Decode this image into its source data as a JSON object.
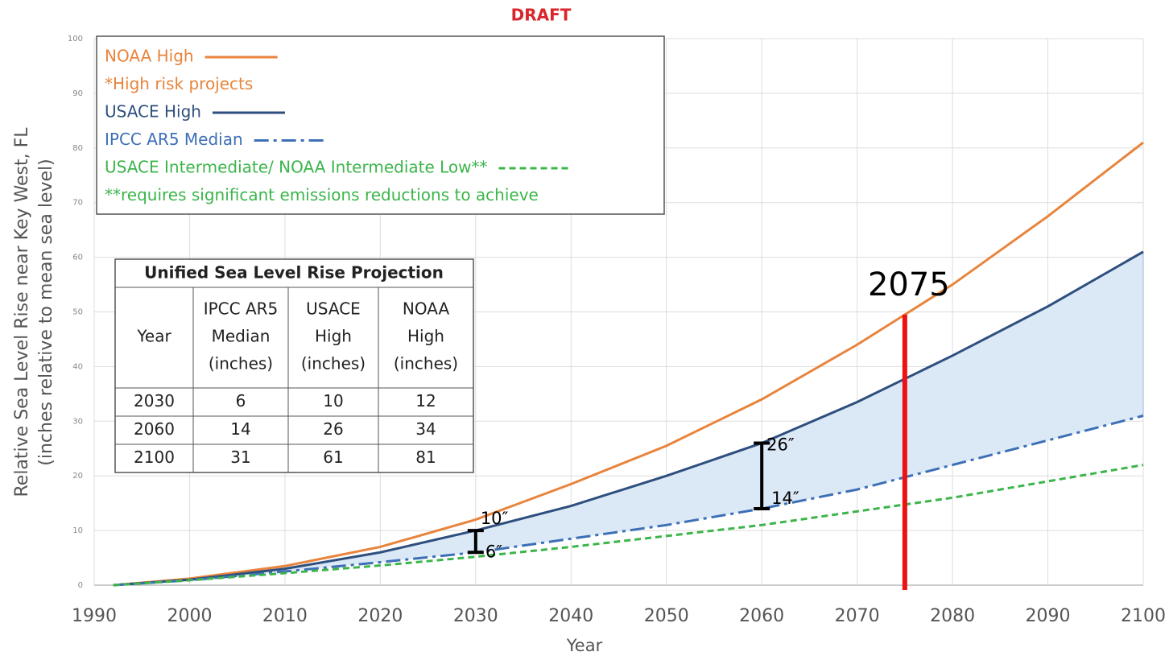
{
  "chart_data": {
    "type": "line",
    "title": "DRAFT",
    "x_label": "Year",
    "y_label": [
      "Relative Sea Level Rise near Key West, FL",
      "(inches relative to mean sea level)"
    ],
    "x": [
      1992,
      2000,
      2010,
      2020,
      2030,
      2040,
      2050,
      2060,
      2070,
      2080,
      2090,
      2100
    ],
    "series": [
      {
        "name": "NOAA High",
        "color": "#e8843c",
        "dash": "",
        "values": [
          0,
          1.2,
          3.5,
          7,
          12,
          18.5,
          25.5,
          34,
          44,
          55,
          67.5,
          81
        ]
      },
      {
        "name": "USACE High",
        "color": "#2e4f7e",
        "dash": "",
        "values": [
          0,
          1,
          3,
          6,
          10,
          14.5,
          20,
          26,
          33.5,
          42,
          51,
          61
        ]
      },
      {
        "name": "IPCC AR5 Median",
        "color": "#3d6fb6",
        "dash": "18 6 4 6",
        "values": [
          0,
          0.9,
          2.5,
          4.2,
          6,
          8.5,
          11,
          14,
          17.5,
          22,
          26.5,
          31
        ]
      },
      {
        "name": "USACE Intermediate/ NOAA Intermediate Low**",
        "color": "#3cb54a",
        "dash": "8 5",
        "values": [
          0,
          0.9,
          2.2,
          3.6,
          5.2,
          7,
          9,
          11,
          13.5,
          16,
          19,
          22
        ]
      }
    ],
    "band_fill": "#dbe8f6",
    "legend_notes": [
      {
        "after": 0,
        "text": "*High risk projects"
      },
      {
        "after": 3,
        "text": "**requires significant emissions reductions to achieve"
      }
    ],
    "xlim": [
      1990,
      2100
    ],
    "xticks": [
      1990,
      2000,
      2010,
      2020,
      2030,
      2040,
      2050,
      2060,
      2070,
      2080,
      2090,
      2100
    ],
    "ylim": [
      0,
      100
    ],
    "yticks": [
      0,
      10,
      20,
      30,
      40,
      50,
      60,
      70,
      80,
      90,
      100
    ],
    "grid": true,
    "marker_line": {
      "x": 2075,
      "label": "2075",
      "color": "#ee1111"
    },
    "brackets": [
      {
        "x": 2030,
        "low": 6,
        "high": 10,
        "low_label": "6″",
        "high_label": "10″"
      },
      {
        "x": 2060,
        "low": 14,
        "high": 26,
        "low_label": "14″",
        "high_label": "26″"
      }
    ],
    "table": {
      "title": "Unified Sea Level Rise Projection",
      "header": [
        [
          "Year"
        ],
        [
          "IPCC AR5",
          "Median",
          "(inches)"
        ],
        [
          "USACE",
          "High",
          "(inches)"
        ],
        [
          "NOAA",
          "High",
          "(inches)"
        ]
      ],
      "rows": [
        [
          "2030",
          "6",
          "10",
          "12"
        ],
        [
          "2060",
          "14",
          "26",
          "34"
        ],
        [
          "2100",
          "31",
          "61",
          "81"
        ]
      ]
    }
  }
}
